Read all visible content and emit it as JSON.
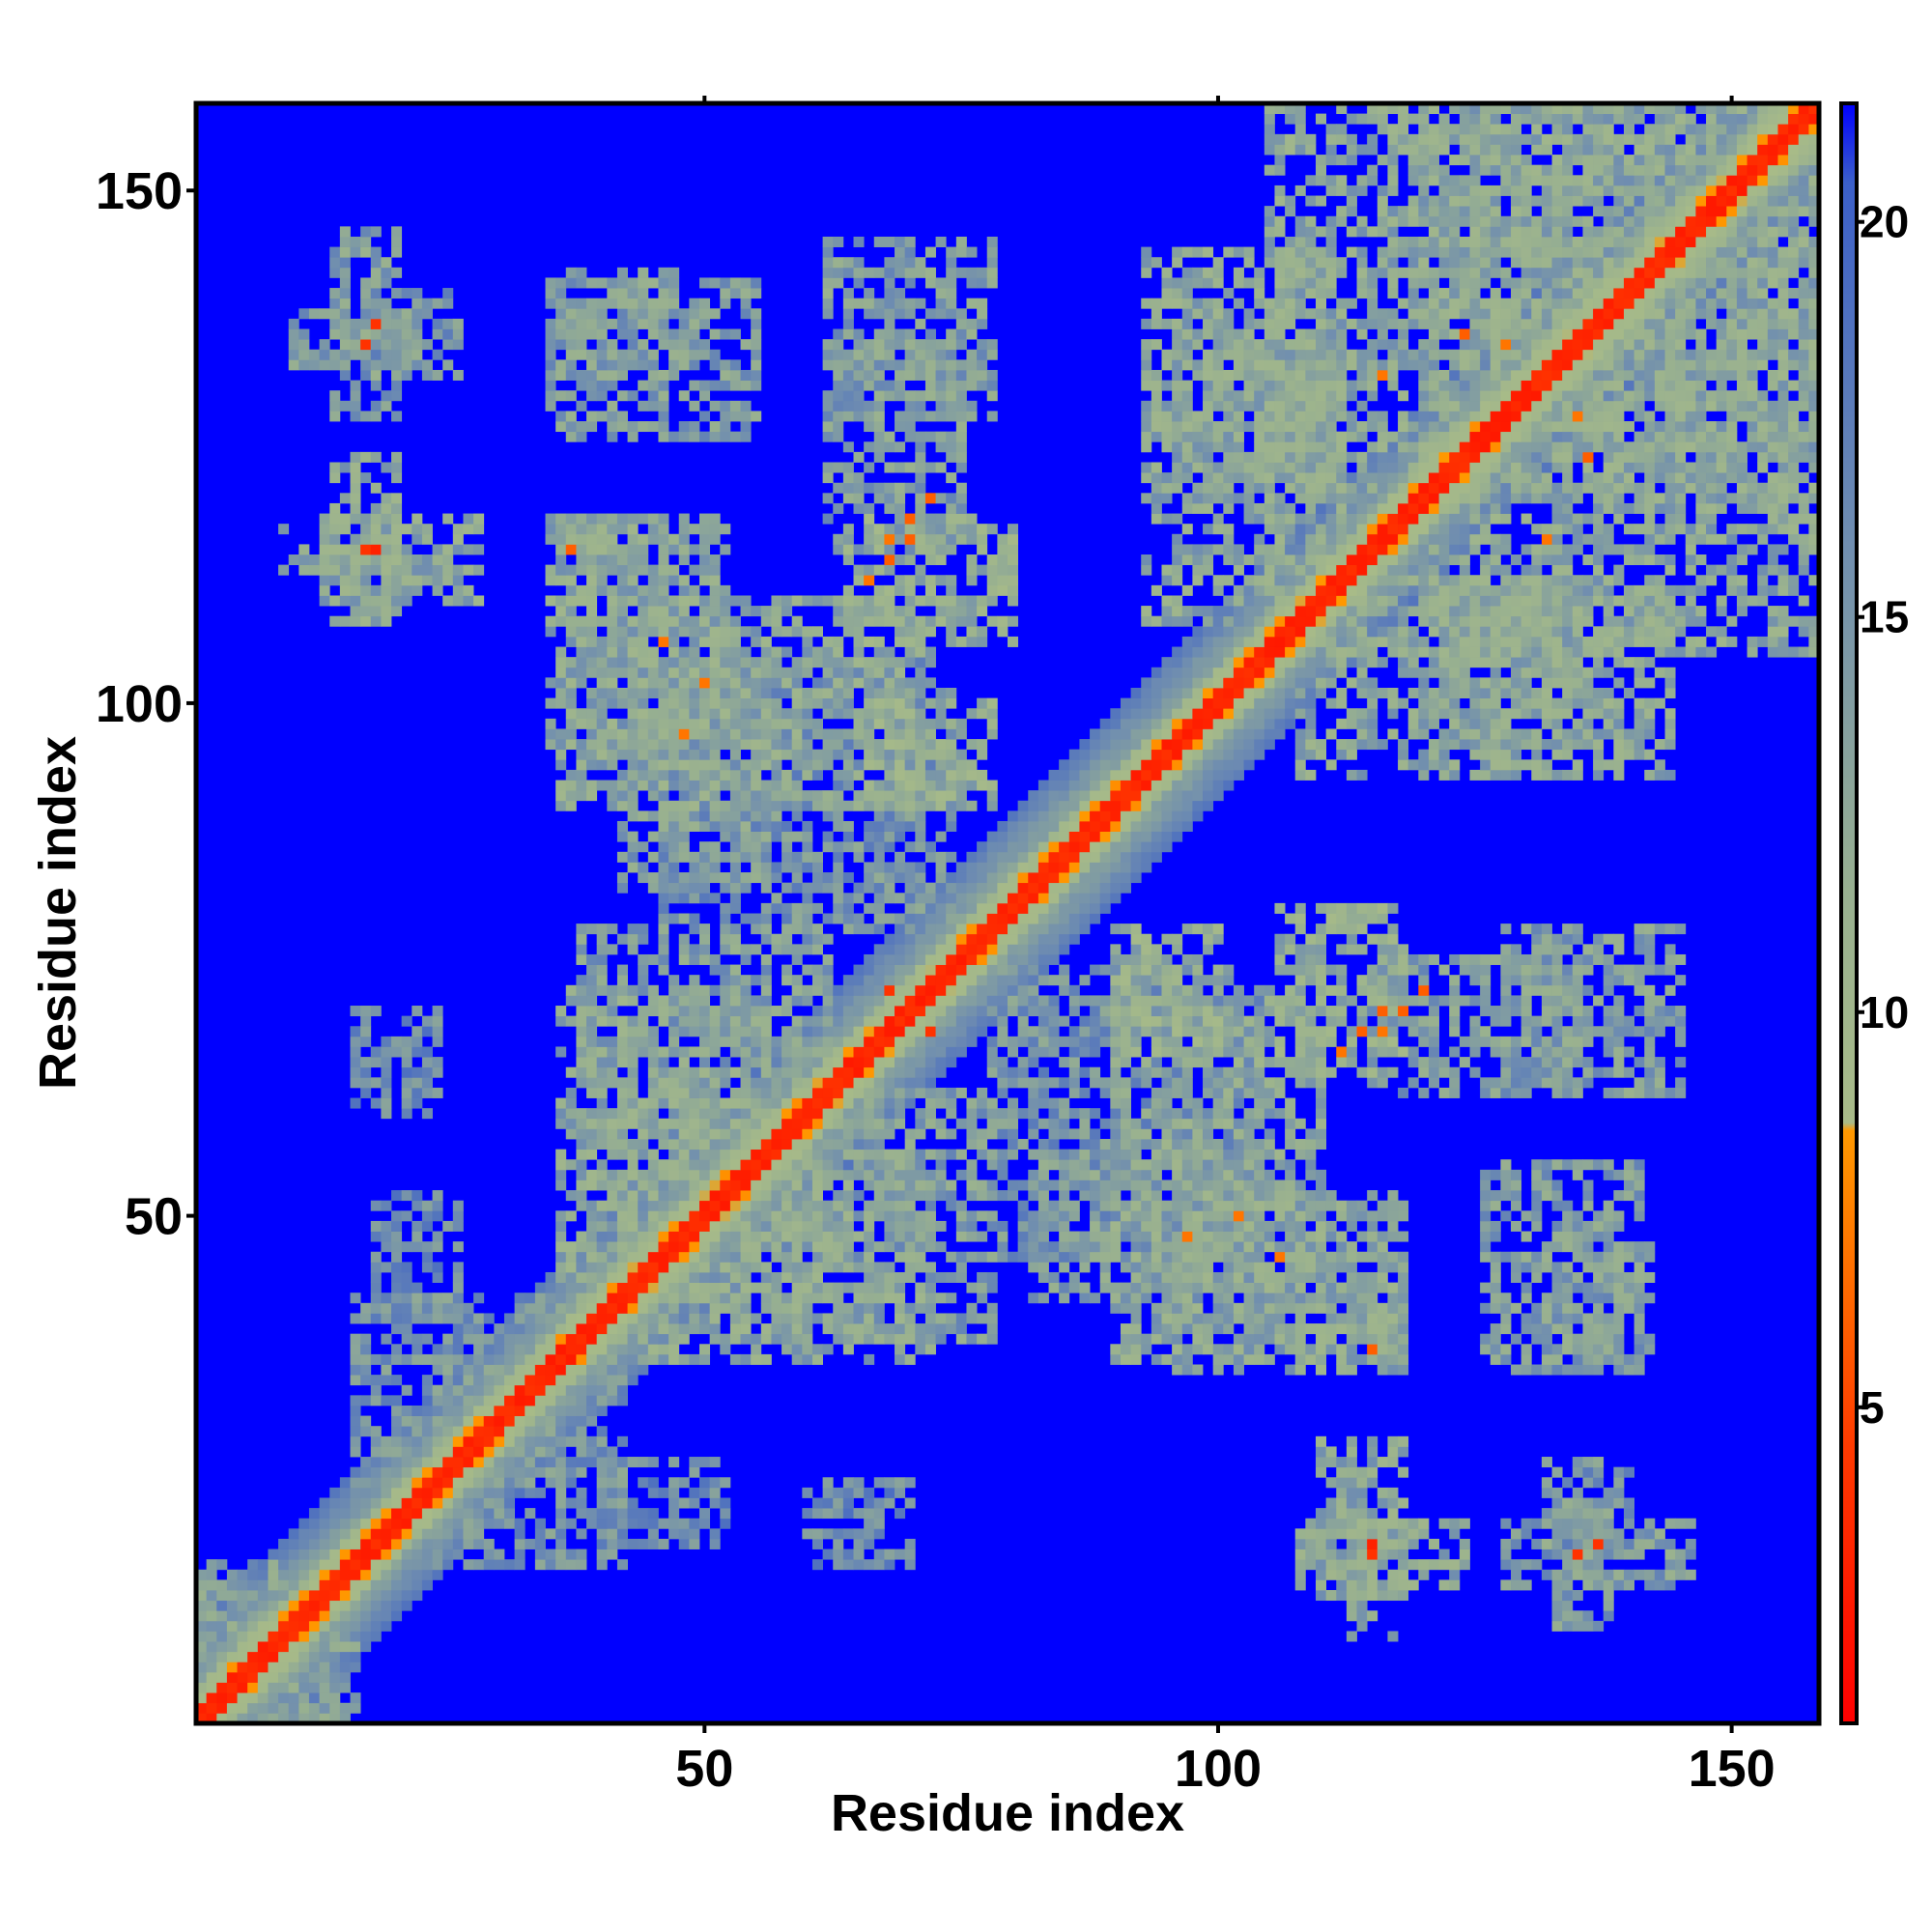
{
  "chart_data": {
    "type": "heatmap",
    "description_units": "pairwise residue distance (Å)",
    "xlabel": "Residue index",
    "ylabel": "Residue index",
    "xlim": [
      1,
      158
    ],
    "ylim": [
      1,
      158
    ],
    "x_ticks": [
      50,
      100,
      150
    ],
    "y_ticks": [
      50,
      100,
      150
    ],
    "x_tick_labels": [
      "50",
      "100",
      "150"
    ],
    "y_tick_labels": [
      "50",
      "100",
      "150"
    ],
    "colorbar": {
      "range": [
        1,
        21.5
      ],
      "ticks": [
        5,
        10,
        15,
        20
      ],
      "tick_labels": [
        "5",
        "10",
        "15",
        "20"
      ],
      "stops": [
        {
          "value": 1,
          "color": "#ff0000"
        },
        {
          "value": 4.5,
          "color": "#ff3a00"
        },
        {
          "value": 8.5,
          "color": "#ff9900"
        },
        {
          "value": 8.6,
          "color": "#a8bb88"
        },
        {
          "value": 11.5,
          "color": "#98b090"
        },
        {
          "value": 16,
          "color": "#6f8db0"
        },
        {
          "value": 20.5,
          "color": "#3b5fc9"
        },
        {
          "value": 21.5,
          "color": "#0000ff"
        }
      ]
    },
    "background_value": 22,
    "background_color": "#0000ff",
    "contact_blocks": [
      {
        "x": [
          9,
          23
        ],
        "y": [
          113,
          117
        ],
        "value": 13
      },
      {
        "x": [
          14,
          20
        ],
        "y": [
          108,
          124
        ],
        "value": 13
      },
      {
        "x": [
          10,
          22
        ],
        "y": [
          133,
          138
        ],
        "value": 14
      },
      {
        "x": [
          14,
          20
        ],
        "y": [
          128,
          146
        ],
        "value": 14
      },
      {
        "x": [
          35,
          52
        ],
        "y": [
          96,
          118
        ],
        "value": 13
      },
      {
        "x": [
          35,
          55
        ],
        "y": [
          126,
          141
        ],
        "value": 14
      },
      {
        "x": [
          62,
          78
        ],
        "y": [
          128,
          145
        ],
        "value": 14
      },
      {
        "x": [
          64,
          80
        ],
        "y": [
          106,
          118
        ],
        "value": 12
      },
      {
        "x": [
          66,
          78
        ],
        "y": [
          90,
          100
        ],
        "value": 12
      },
      {
        "x": [
          46,
          74
        ],
        "y": [
          78,
          104
        ],
        "value": 15
      },
      {
        "x": [
          93,
          112
        ],
        "y": [
          108,
          144
        ],
        "value": 13
      },
      {
        "x": [
          105,
          158
        ],
        "y": [
          120,
          158
        ],
        "value": 13
      },
      {
        "x": [
          120,
          136
        ],
        "y": [
          96,
          112
        ],
        "value": 13
      },
      {
        "x": [
          115,
          135
        ],
        "y": [
          62,
          75
        ],
        "value": 14
      },
      {
        "x": [
          90,
          110
        ],
        "y": [
          36,
          72
        ],
        "value": 13
      },
      {
        "x": [
          82,
          98
        ],
        "y": [
          42,
          56
        ],
        "value": 14
      },
      {
        "x": [
          108,
          118
        ],
        "y": [
          36,
          48
        ],
        "value": 13
      },
      {
        "x": [
          132,
          142
        ],
        "y": [
          36,
          48
        ],
        "value": 14
      },
      {
        "x": [
          110,
          118
        ],
        "y": [
          13,
          28
        ],
        "value": 13
      },
      {
        "x": [
          132,
          140
        ],
        "y": [
          14,
          26
        ],
        "value": 15
      },
      {
        "x": [
          36,
          62
        ],
        "y": [
          42,
          72
        ],
        "value": 13
      },
      {
        "x": [
          58,
          78
        ],
        "y": [
          38,
          62
        ],
        "value": 14
      },
      {
        "x": [
          16,
          36
        ],
        "y": [
          24,
          42
        ],
        "value": 15
      },
      {
        "x": [
          1,
          14
        ],
        "y": [
          1,
          16
        ],
        "value": 14
      },
      {
        "x": [
          60,
          70
        ],
        "y": [
          16,
          24
        ],
        "value": 16
      },
      {
        "x": [
          40,
          52
        ],
        "y": [
          18,
          26
        ],
        "value": 16
      }
    ],
    "contact_points": [
      {
        "x": 17,
        "y": 115,
        "value": 4
      },
      {
        "x": 17,
        "y": 135,
        "value": 4
      },
      {
        "x": 37,
        "y": 115,
        "value": 6
      },
      {
        "x": 68,
        "y": 72,
        "value": 4
      },
      {
        "x": 115,
        "y": 18,
        "value": 3
      },
      {
        "x": 137,
        "y": 18,
        "value": 4
      },
      {
        "x": 116,
        "y": 68,
        "value": 7
      },
      {
        "x": 118,
        "y": 70,
        "value": 6
      },
      {
        "x": 120,
        "y": 72,
        "value": 6
      },
      {
        "x": 66,
        "y": 112,
        "value": 7
      },
      {
        "x": 68,
        "y": 114,
        "value": 6
      },
      {
        "x": 70,
        "y": 116,
        "value": 6
      },
      {
        "x": 128,
        "y": 135,
        "value": 7
      },
      {
        "x": 124,
        "y": 136,
        "value": 6
      },
      {
        "x": 132,
        "y": 116,
        "value": 7
      },
      {
        "x": 97,
        "y": 48,
        "value": 7
      },
      {
        "x": 102,
        "y": 50,
        "value": 7
      },
      {
        "x": 106,
        "y": 46,
        "value": 7
      }
    ]
  }
}
